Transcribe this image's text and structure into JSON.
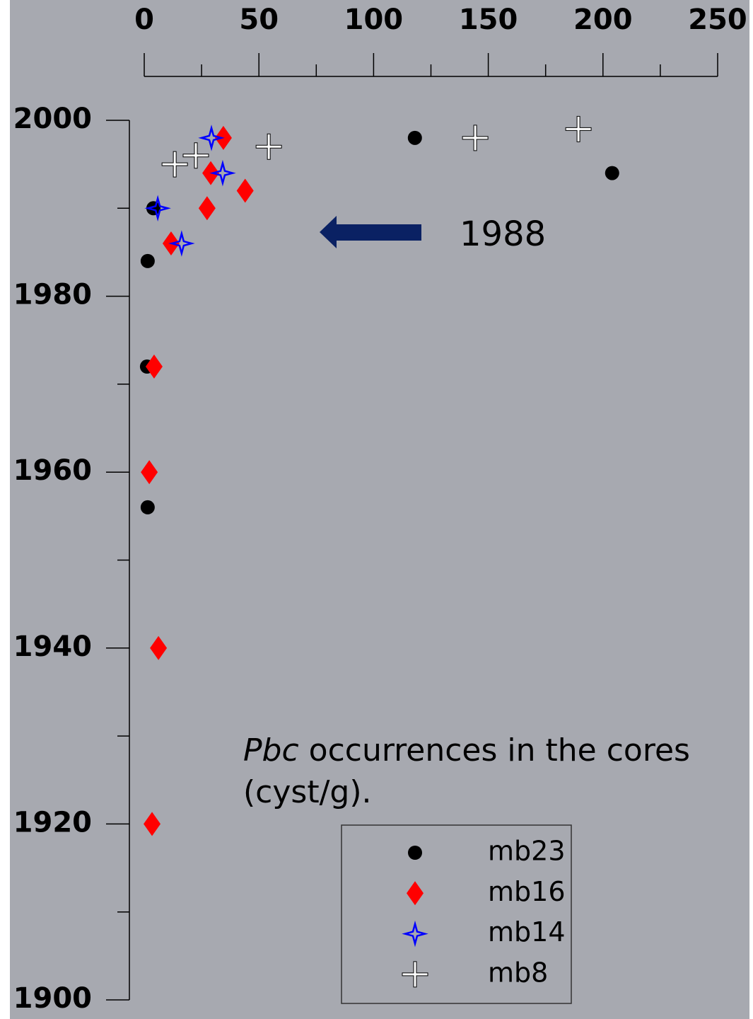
{
  "chart_data": {
    "type": "scatter",
    "annotation": "1988",
    "caption_italic": "Pbc",
    "caption_line1": "occurrences in the cores",
    "caption_line2": "(cyst/g).",
    "xlim": [
      0,
      250
    ],
    "xticks": [
      0,
      50,
      100,
      150,
      200,
      250
    ],
    "xminorticks": [
      25,
      75,
      125,
      175,
      225
    ],
    "ylim": [
      1900,
      2000
    ],
    "yticks": [
      1900,
      1920,
      1940,
      1960,
      1980,
      2000
    ],
    "yminorticks": [
      1910,
      1930,
      1950,
      1970,
      1990
    ],
    "legend": "bottom-right",
    "series": [
      {
        "name": "mb23",
        "color": "#000000",
        "marker": "circle",
        "x": [
          118,
          204,
          4,
          1.5,
          1.2,
          1.5
        ],
        "values": [
          1998,
          1994,
          1990,
          1984,
          1972,
          1956
        ]
      },
      {
        "name": "mb16",
        "color": "#ff0000",
        "marker": "diamond",
        "x": [
          34.5,
          29,
          44,
          27.4,
          11.7,
          4.3,
          2.2,
          6.2,
          3.4
        ],
        "values": [
          1998,
          1994,
          1992,
          1990,
          1986,
          1972,
          1960,
          1940,
          1920
        ]
      },
      {
        "name": "mb14",
        "color": "#0000ff",
        "marker": "star",
        "x": [
          29.3,
          34.2,
          5.9,
          16.3
        ],
        "values": [
          1998,
          1994,
          1990,
          1986
        ]
      },
      {
        "name": "mb8",
        "color": "#ffffff",
        "marker": "cross",
        "x": [
          189.3,
          144.3,
          54.3,
          22.5,
          13.3
        ],
        "values": [
          1999,
          1998,
          1997,
          1996,
          1995
        ]
      }
    ]
  }
}
